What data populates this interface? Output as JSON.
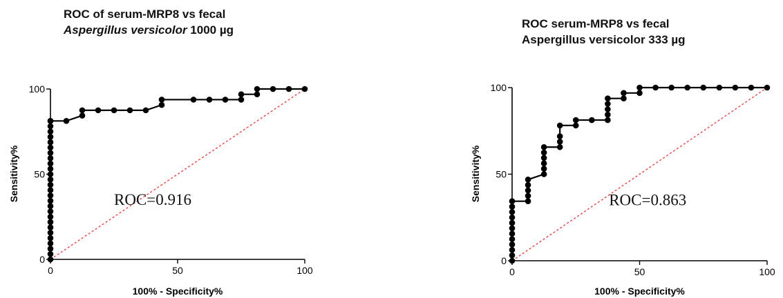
{
  "chart_data": [
    {
      "type": "line",
      "title_line1": "ROC of serum-MRP8 vs fecal",
      "title_line2_italic": "Aspergillus versicolor",
      "title_line2_rest": " 1000 µg",
      "xlabel": "100% - Specificity%",
      "ylabel": "Sensitivity%",
      "xlim": [
        0,
        100
      ],
      "ylim": [
        0,
        100
      ],
      "xticks": [
        0,
        50,
        100
      ],
      "yticks": [
        0,
        50,
        100
      ],
      "annotation": "ROC=0.916",
      "annotation_pos": [
        25,
        32
      ],
      "reference_line": {
        "x": [
          0,
          100
        ],
        "y": [
          0,
          100
        ],
        "color": "#ff3b3b",
        "style": "dashed"
      },
      "series": [
        {
          "x": [
            0,
            0,
            0,
            0,
            0,
            0,
            0,
            0,
            0,
            0,
            0,
            0,
            0,
            0,
            0,
            0,
            0,
            0,
            0,
            0,
            0,
            0,
            0,
            0,
            0,
            0,
            0,
            0,
            6.25,
            12.5,
            12.5,
            18.75,
            25,
            31.25,
            37.5,
            43.75,
            43.75,
            56.25,
            62.5,
            68.75,
            75,
            75,
            81.25,
            81.25,
            87.5,
            93.75,
            100
          ],
          "y": [
            0,
            3.13,
            6.25,
            9.38,
            12.5,
            15.63,
            18.75,
            21.88,
            25,
            28.13,
            31.25,
            34.38,
            37.5,
            40.63,
            43.75,
            46.88,
            50,
            53.13,
            56.25,
            59.38,
            62.5,
            65.63,
            68.75,
            71.88,
            75,
            78.13,
            81.25,
            81.25,
            81.25,
            84.38,
            87.5,
            87.5,
            87.5,
            87.5,
            87.5,
            90.63,
            93.75,
            93.75,
            93.75,
            93.75,
            93.75,
            96.88,
            96.88,
            100,
            100,
            100,
            100
          ]
        }
      ]
    },
    {
      "type": "line",
      "title_line1": "ROC serum-MRP8 vs fecal",
      "title_line2_italic": "",
      "title_line2_rest": "Aspergillus versicolor 333 µg",
      "xlabel": "100% - Specificity%",
      "ylabel": "Sensitivity%",
      "xlim": [
        0,
        100
      ],
      "ylim": [
        0,
        100
      ],
      "xticks": [
        0,
        50,
        100
      ],
      "yticks": [
        0,
        50,
        100
      ],
      "annotation": "ROC=0.863",
      "annotation_pos": [
        38,
        32
      ],
      "reference_line": {
        "x": [
          0,
          100
        ],
        "y": [
          0,
          100
        ],
        "color": "#ff3b3b",
        "style": "dashed"
      },
      "series": [
        {
          "x": [
            0,
            0,
            0,
            0,
            0,
            0,
            0,
            0,
            0,
            0,
            0,
            0,
            6.25,
            6.25,
            6.25,
            6.25,
            6.25,
            12.5,
            12.5,
            12.5,
            12.5,
            12.5,
            12.5,
            18.75,
            18.75,
            18.75,
            18.75,
            25,
            25,
            31.25,
            37.5,
            37.5,
            37.5,
            37.5,
            37.5,
            43.75,
            43.75,
            50,
            50,
            56.25,
            62.5,
            68.75,
            75,
            81.25,
            87.5,
            93.75,
            100
          ],
          "y": [
            0,
            3.13,
            6.25,
            9.38,
            12.5,
            15.63,
            18.75,
            21.88,
            25,
            28.13,
            31.25,
            34.38,
            34.38,
            37.5,
            40.63,
            43.75,
            46.88,
            50,
            53.13,
            56.25,
            59.38,
            62.5,
            65.63,
            65.63,
            68.75,
            71.88,
            78.13,
            78.13,
            81.25,
            81.25,
            81.25,
            84.38,
            87.5,
            90.63,
            93.75,
            93.75,
            96.88,
            96.88,
            100,
            100,
            100,
            100,
            100,
            100,
            100,
            100,
            100
          ]
        }
      ]
    }
  ]
}
